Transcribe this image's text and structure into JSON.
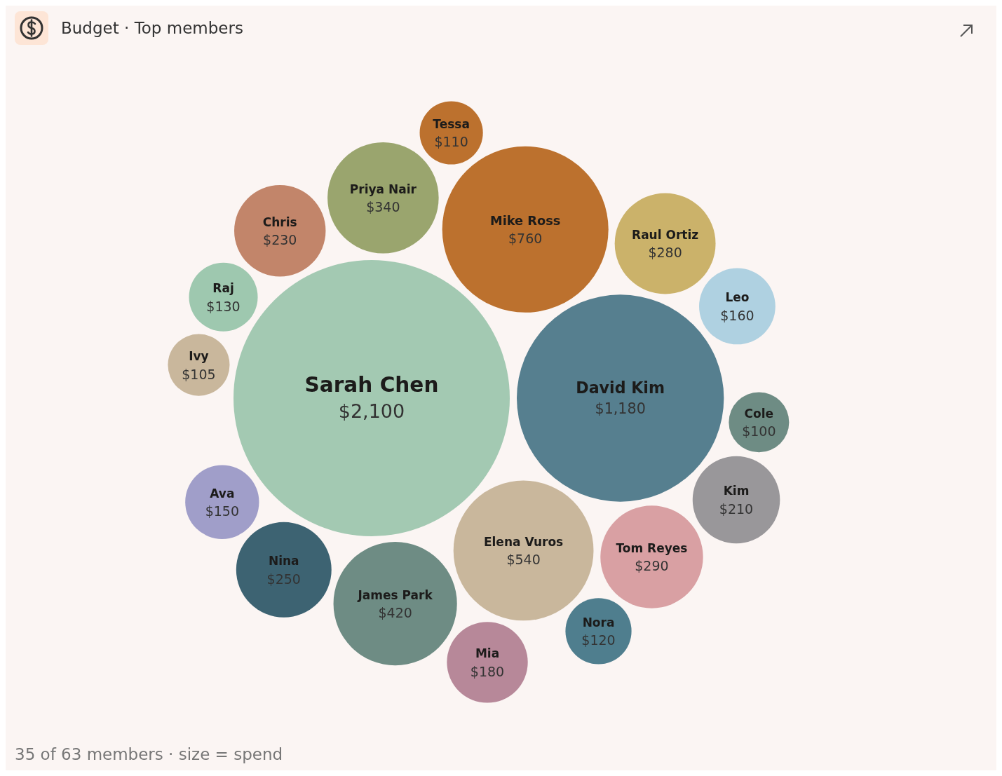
{
  "chart_data": {
    "type": "other",
    "title": "Budget · Top members",
    "categories": [
      "Sarah Chen",
      "David Kim",
      "Mike Ross",
      "Elena Vuros",
      "James Park",
      "Priya Nair",
      "Tom Reyes",
      "Raul Ortiz",
      "Nina",
      "Chris",
      "Kim",
      "Mia",
      "Leo",
      "Ava",
      "Raj",
      "Nora",
      "Tessa",
      "Ivy",
      "Cole"
    ],
    "values": [
      2100,
      1180,
      760,
      540,
      420,
      340,
      290,
      280,
      250,
      230,
      210,
      180,
      160,
      150,
      130,
      120,
      110,
      105,
      100
    ],
    "value_labels": [
      "$2,100",
      "$1,180",
      "$760",
      "$540",
      "$420",
      "$340",
      "$290",
      "$280",
      "$250",
      "$230",
      "$210",
      "$180",
      "$160",
      "$150",
      "$130",
      "$120",
      "$110",
      "$105",
      "$100"
    ],
    "colors": [
      "#a3c9b2",
      "#567f8f",
      "#bc712e",
      "#c9b79c",
      "#6e8c84",
      "#9aa56e",
      "#d9a0a3",
      "#cbb26a",
      "#3d6372",
      "#c2856a",
      "#99979a",
      "#b78899",
      "#afd1e1",
      "#a09ec9",
      "#9ec8af",
      "#4f7e8e",
      "#bc712e",
      "#c9b79c",
      "#6e8c84"
    ],
    "annotations": [
      "35 of 63 members · size = spend"
    ]
  }
}
